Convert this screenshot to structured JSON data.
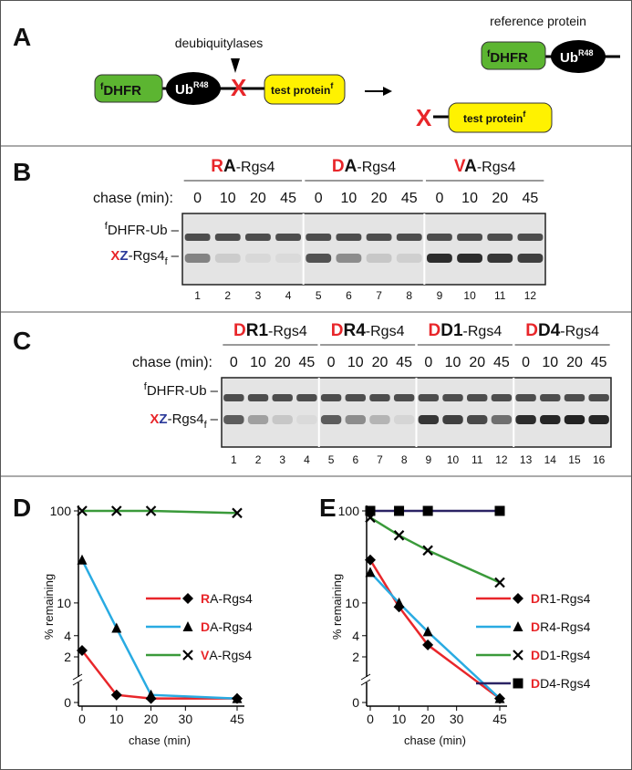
{
  "panel_labels": [
    "A",
    "B",
    "C",
    "D",
    "E"
  ],
  "diagram_a": {
    "cleavage_label": "deubiquitylases",
    "product_label": "reference protein",
    "dhfr_prefix": "f",
    "dhfr": "DHFR",
    "ub": "Ub",
    "ub_sup": "R48",
    "x": "X",
    "test_protein": "test protein",
    "test_sup": "f"
  },
  "band_labels": {
    "upper_sup": "f",
    "upper": "DHFR-Ub",
    "lower_x": "X",
    "lower_z": "Z",
    "lower": "-Rgs4",
    "lower_sub": "f",
    "tick": "–"
  },
  "gel_b": {
    "groups": [
      "RA-Rgs4",
      "DA-Rgs4",
      "VA-Rgs4"
    ],
    "chase_label": "chase (min):",
    "chase_times": [
      0,
      10,
      20,
      45,
      0,
      10,
      20,
      45,
      0,
      10,
      20,
      45
    ],
    "lanes": [
      1,
      2,
      3,
      4,
      5,
      6,
      7,
      8,
      9,
      10,
      11,
      12
    ]
  },
  "gel_c": {
    "groups": [
      "DR1-Rgs4",
      "DR4-Rgs4",
      "DD1-Rgs4",
      "DD4-Rgs4"
    ],
    "chase_label": "chase (min):",
    "chase_times": [
      0,
      10,
      20,
      45,
      0,
      10,
      20,
      45,
      0,
      10,
      20,
      45,
      0,
      10,
      20,
      45
    ],
    "lanes": [
      1,
      2,
      3,
      4,
      5,
      6,
      7,
      8,
      9,
      10,
      11,
      12,
      13,
      14,
      15,
      16
    ]
  },
  "chart_data": [
    {
      "type": "line",
      "x": [
        0,
        10,
        20,
        45
      ],
      "xlim": [
        0,
        45
      ],
      "xticks": [
        0,
        10,
        20,
        30,
        45
      ],
      "ylim": [
        0,
        100
      ],
      "yticks": [
        0,
        2,
        4,
        10,
        100
      ],
      "yscale": "symlog",
      "x_label": "chase (min)",
      "y_label": "% remaining",
      "series": [
        {
          "name": "RA-Rgs4",
          "color": "#e8262a",
          "marker": "diamond",
          "values": [
            2.5,
            0.2,
            0.1,
            0.1
          ]
        },
        {
          "name": "DA-Rgs4",
          "color": "#29abe2",
          "marker": "triangle",
          "values": [
            30,
            5,
            0.2,
            0.1
          ]
        },
        {
          "name": "VA-Rgs4",
          "color": "#3a9a3a",
          "marker": "x",
          "values": [
            100,
            100,
            100,
            95
          ]
        }
      ]
    },
    {
      "type": "line",
      "x": [
        0,
        10,
        20,
        45
      ],
      "xlim": [
        0,
        45
      ],
      "xticks": [
        0,
        10,
        20,
        30,
        45
      ],
      "ylim": [
        0,
        100
      ],
      "yticks": [
        0,
        2,
        4,
        10,
        100
      ],
      "yscale": "symlog",
      "x_label": "chase (min)",
      "y_label": "% remaining",
      "series": [
        {
          "name": "DR1-Rgs4",
          "color": "#e8262a",
          "marker": "diamond",
          "values": [
            30,
            9,
            3,
            0.1
          ]
        },
        {
          "name": "DR4-Rgs4",
          "color": "#29abe2",
          "marker": "triangle",
          "values": [
            22,
            10,
            4.5,
            0.1
          ]
        },
        {
          "name": "DD1-Rgs4",
          "color": "#3a9a3a",
          "marker": "x",
          "values": [
            85,
            55,
            38,
            17
          ]
        },
        {
          "name": "DD4-Rgs4",
          "color": "#2b2364",
          "marker": "square",
          "values": [
            100,
            100,
            100,
            100
          ]
        }
      ]
    }
  ]
}
